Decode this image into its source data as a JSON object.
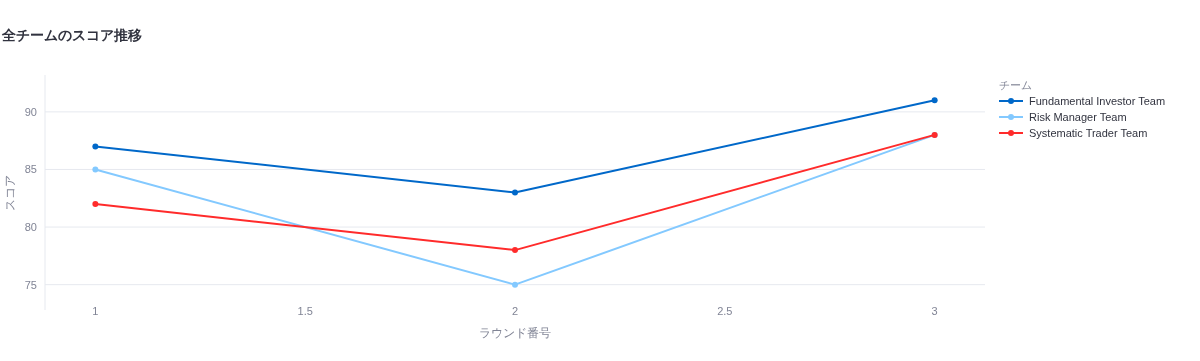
{
  "chart_data": {
    "type": "line",
    "title": "全チームのスコア推移",
    "xlabel": "ラウンド番号",
    "ylabel": "スコア",
    "legend_title": "チーム",
    "x": [
      1,
      2,
      3
    ],
    "series": [
      {
        "name": "Fundamental Investor Team",
        "color": "#0068c9",
        "values": [
          87,
          83,
          91
        ]
      },
      {
        "name": "Risk Manager Team",
        "color": "#83c9ff",
        "values": [
          85,
          75,
          88
        ]
      },
      {
        "name": "Systematic Trader Team",
        "color": "#ff2b2b",
        "values": [
          82,
          78,
          88
        ]
      }
    ],
    "xlim": [
      0.88,
      3.12
    ],
    "xticks": [
      1,
      1.5,
      2,
      2.5,
      3
    ],
    "ylim": [
      72.8,
      93.2
    ],
    "yticks": [
      75,
      80,
      85,
      90
    ],
    "grid": "y",
    "legend": "right",
    "marker": "circle",
    "line_style": "solid"
  }
}
